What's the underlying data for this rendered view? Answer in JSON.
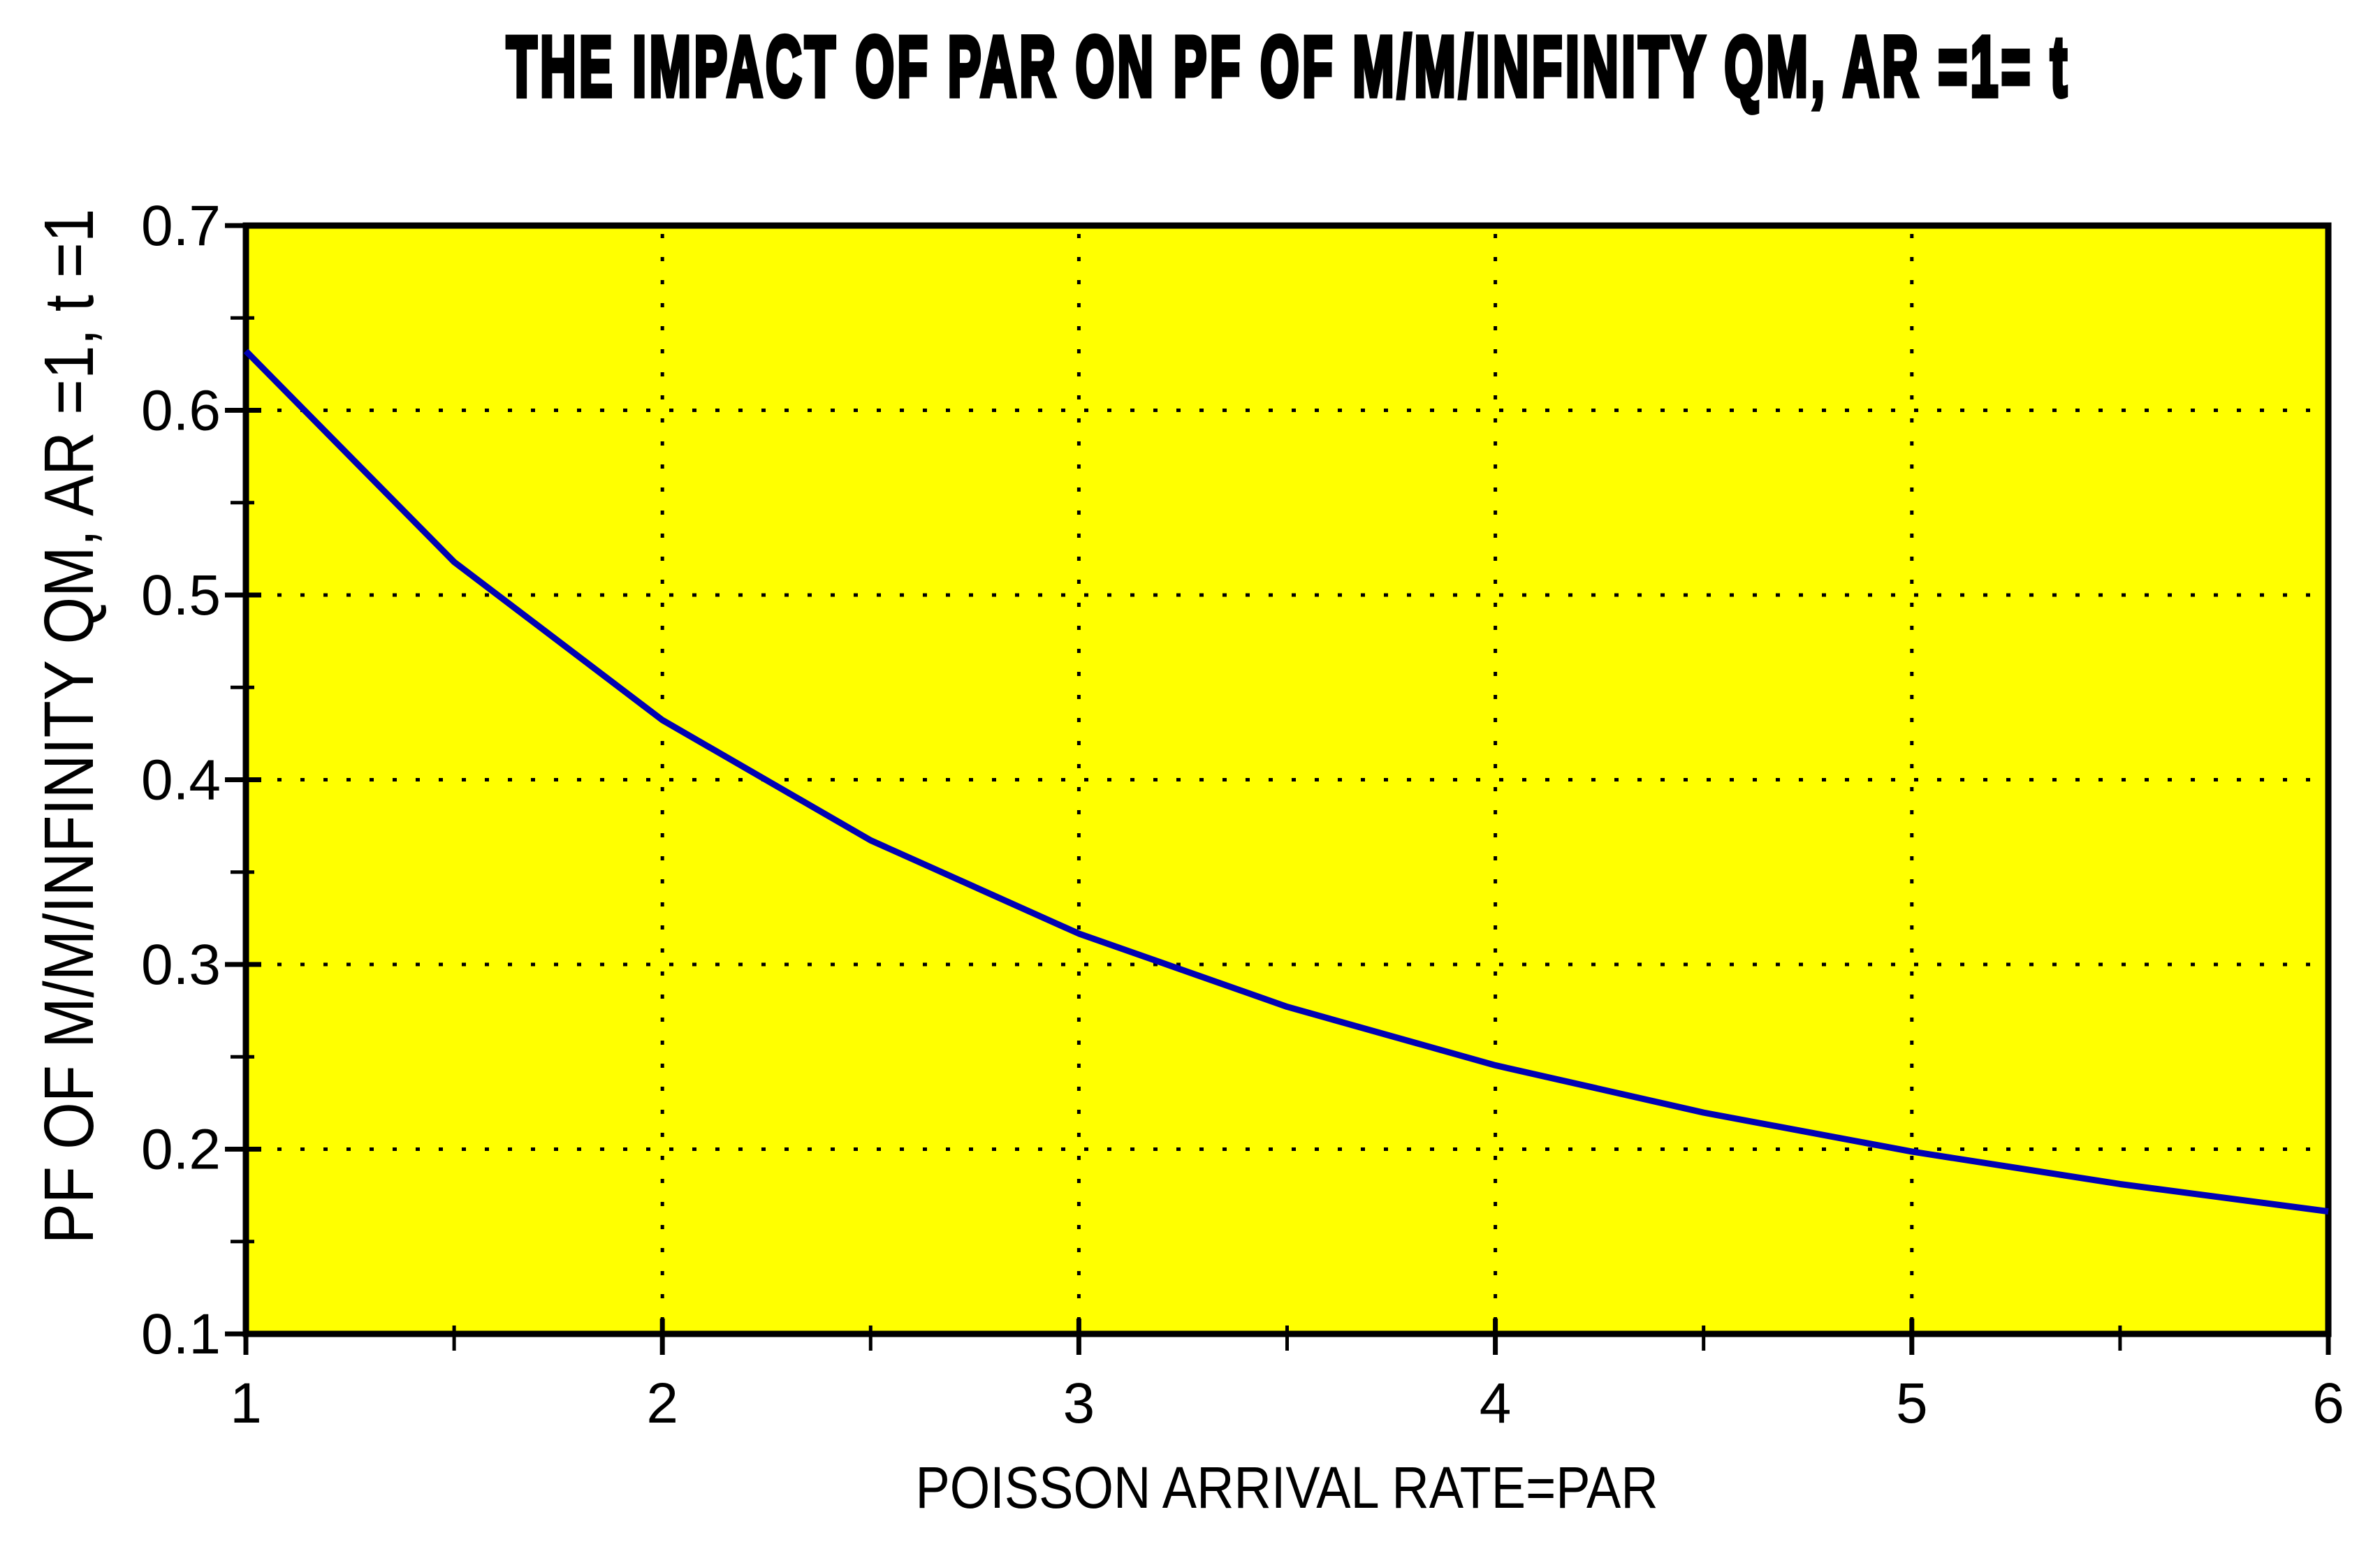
{
  "figure": {
    "title": "THE IMPACT OF PAR ON PF OF M/M/INFINITY QM, AR =1= t",
    "xlabel": "POISSON ARRIVAL RATE=PAR",
    "ylabel": "PF OF M/M/INFINITY QM, AR =1, t =1"
  },
  "chart_data": {
    "type": "line",
    "title": "THE IMPACT OF PAR ON PF OF M/M/INFINITY QM, AR =1= t",
    "xlabel": "POISSON ARRIVAL RATE=PAR",
    "ylabel": "PF OF M/M/INFINITY QM, AR =1, t =1",
    "x": [
      1.0,
      1.5,
      2.0,
      2.5,
      3.0,
      3.5,
      4.0,
      4.5,
      5.0,
      5.5,
      6.0
    ],
    "series": [
      {
        "name": "PF of M/M/infinity QM",
        "values": [
          0.6321,
          0.5179,
          0.4323,
          0.3672,
          0.3167,
          0.2771,
          0.2454,
          0.2198,
          0.1987,
          0.1811,
          0.1663
        ]
      }
    ],
    "xlim": [
      1,
      6
    ],
    "ylim": [
      0.1,
      0.7
    ],
    "xticks": [
      1,
      2,
      3,
      4,
      5,
      6
    ],
    "xtick_labels": [
      "1",
      "2",
      "3",
      "4",
      "5",
      "6"
    ],
    "yticks": [
      0.1,
      0.2,
      0.3,
      0.4,
      0.5,
      0.6,
      0.7
    ],
    "ytick_labels": [
      "0.1",
      "0.2",
      "0.3",
      "0.4",
      "0.5",
      "0.6",
      "0.7"
    ],
    "x_minor_ticks": [
      1.5,
      2.5,
      3.5,
      4.5,
      5.5
    ],
    "y_minor_ticks": [
      0.15,
      0.25,
      0.35,
      0.45,
      0.55,
      0.65
    ],
    "x_grid_lines": [
      2,
      3,
      4,
      5
    ],
    "y_grid_lines": [
      0.2,
      0.3,
      0.4,
      0.5,
      0.6
    ],
    "grid_style": "dotted",
    "legend": "none",
    "plot_bg_color": "#FFFF00",
    "outer_bg_color": "#FFFFFF",
    "line_color": "#0000B4",
    "grid_color": "#000000",
    "axis_color": "#000000",
    "text_color": "#000000"
  }
}
